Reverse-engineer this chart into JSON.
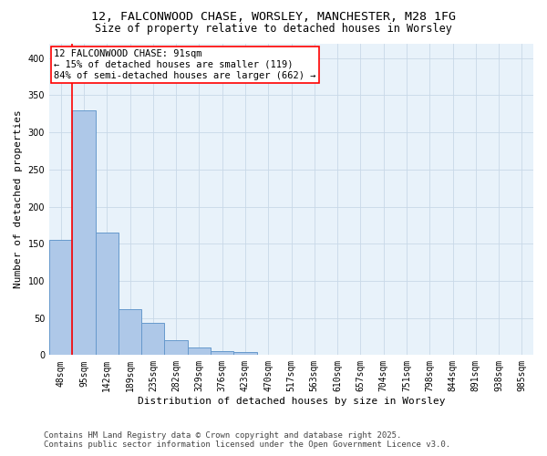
{
  "title_line1": "12, FALCONWOOD CHASE, WORSLEY, MANCHESTER, M28 1FG",
  "title_line2": "Size of property relative to detached houses in Worsley",
  "xlabel": "Distribution of detached houses by size in Worsley",
  "ylabel": "Number of detached properties",
  "bar_labels": [
    "48sqm",
    "95sqm",
    "142sqm",
    "189sqm",
    "235sqm",
    "282sqm",
    "329sqm",
    "376sqm",
    "423sqm",
    "470sqm",
    "517sqm",
    "563sqm",
    "610sqm",
    "657sqm",
    "704sqm",
    "751sqm",
    "798sqm",
    "844sqm",
    "891sqm",
    "938sqm",
    "985sqm"
  ],
  "bar_heights": [
    155,
    330,
    165,
    62,
    43,
    20,
    10,
    5,
    4,
    1,
    0,
    0,
    0,
    0,
    0,
    0,
    0,
    0,
    0,
    0,
    0
  ],
  "bar_color": "#aec8e8",
  "bar_edge_color": "#6699cc",
  "bar_edge_width": 0.7,
  "grid_color": "#c8d8e8",
  "background_color": "#e8f2fa",
  "annotation_text": "12 FALCONWOOD CHASE: 91sqm\n← 15% of detached houses are smaller (119)\n84% of semi-detached houses are larger (662) →",
  "ylim": [
    0,
    420
  ],
  "yticks": [
    0,
    50,
    100,
    150,
    200,
    250,
    300,
    350,
    400
  ],
  "footer_line1": "Contains HM Land Registry data © Crown copyright and database right 2025.",
  "footer_line2": "Contains public sector information licensed under the Open Government Licence v3.0.",
  "title_fontsize": 9.5,
  "subtitle_fontsize": 8.5,
  "axis_label_fontsize": 8,
  "tick_fontsize": 7,
  "annotation_fontsize": 7.5,
  "footer_fontsize": 6.5
}
